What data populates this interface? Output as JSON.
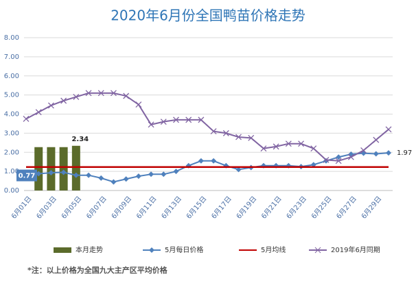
{
  "chart_data": {
    "type": "line",
    "title": "2020年6月份全国鸭苗价格走势",
    "note": "*注：以上价格为全国九大主产区平均价格",
    "categories": [
      "6月01日",
      null,
      "6月03日",
      null,
      "6月05日",
      null,
      "6月07日",
      null,
      "6月09日",
      null,
      "6月11日",
      null,
      "6月13日",
      null,
      "6月15日",
      null,
      "6月17日",
      null,
      "6月19日",
      null,
      "6月21日",
      null,
      "6月23日",
      null,
      "6月25日",
      null,
      "6月27日",
      null,
      "6月29日",
      null
    ],
    "ylim": [
      0,
      8
    ],
    "yticks": [
      {
        "value": 0,
        "label": "0.00"
      },
      {
        "value": 1,
        "label": "1.00"
      },
      {
        "value": 2,
        "label": "2.00"
      },
      {
        "value": 3,
        "label": "3.00"
      },
      {
        "value": 4,
        "label": "4.00"
      },
      {
        "value": 5,
        "label": "5.00"
      },
      {
        "value": 6,
        "label": "6.00"
      },
      {
        "value": 7,
        "label": "7.00"
      },
      {
        "value": 8,
        "label": "8.00"
      }
    ],
    "grid": true,
    "series": [
      {
        "name": "本月走势",
        "type": "bar",
        "color": "#5b6b2b",
        "values": [
          null,
          2.27,
          2.27,
          2.27,
          2.34,
          null,
          null,
          null,
          null,
          null,
          null,
          null,
          null,
          null,
          null,
          null,
          null,
          null,
          null,
          null,
          null,
          null,
          null,
          null,
          null,
          null,
          null,
          null,
          null,
          null
        ],
        "value_labels": [
          null,
          null,
          null,
          null,
          "2.34",
          null,
          null,
          null,
          null,
          null,
          null,
          null,
          null,
          null,
          null,
          null,
          null,
          null,
          null,
          null,
          null,
          null,
          null,
          null,
          null,
          null,
          null,
          null,
          null,
          null
        ]
      },
      {
        "name": "5月每日价格",
        "type": "line",
        "marker": "diamond",
        "color": "#4f81bd",
        "values": [
          0.77,
          0.88,
          0.93,
          0.95,
          0.8,
          0.8,
          0.65,
          0.45,
          0.6,
          0.75,
          0.85,
          0.85,
          1.0,
          1.3,
          1.55,
          1.55,
          1.3,
          1.1,
          1.2,
          1.3,
          1.3,
          1.3,
          1.25,
          1.35,
          1.55,
          1.75,
          1.9,
          1.95,
          1.92,
          1.97
        ],
        "value_labels": [
          "0.77",
          null,
          null,
          null,
          null,
          null,
          null,
          null,
          null,
          null,
          null,
          null,
          null,
          null,
          null,
          null,
          null,
          null,
          null,
          null,
          null,
          null,
          null,
          null,
          null,
          null,
          null,
          null,
          null,
          "1.97"
        ]
      },
      {
        "name": "5月均线",
        "type": "line",
        "color": "#c00000",
        "values": [
          1.23,
          1.23,
          1.23,
          1.23,
          1.23,
          1.23,
          1.23,
          1.23,
          1.23,
          1.23,
          1.23,
          1.23,
          1.23,
          1.23,
          1.23,
          1.23,
          1.23,
          1.23,
          1.23,
          1.23,
          1.23,
          1.23,
          1.23,
          1.23,
          1.23,
          1.23,
          1.23,
          1.23,
          1.23,
          1.23
        ]
      },
      {
        "name": "2019年6月同期",
        "type": "line",
        "marker": "x",
        "color": "#8064a2",
        "values": [
          3.75,
          4.1,
          4.45,
          4.7,
          4.9,
          5.1,
          5.1,
          5.1,
          4.95,
          4.5,
          3.45,
          3.6,
          3.7,
          3.7,
          3.7,
          3.1,
          3.0,
          2.8,
          2.75,
          2.2,
          2.3,
          2.45,
          2.45,
          2.2,
          1.6,
          1.55,
          1.75,
          2.1,
          2.65,
          3.2
        ]
      }
    ]
  }
}
